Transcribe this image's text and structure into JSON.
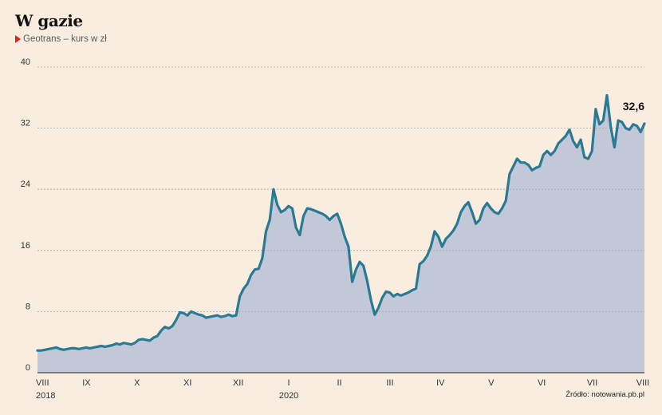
{
  "title": "W gazie",
  "legend_label": "Geotrans – kurs w zł",
  "source": "Źródło: notowania.pb.pl",
  "colors": {
    "background": "#f9ede0",
    "line": "#2a7a94",
    "area": "#c3c8d9",
    "marker": "#e2231a",
    "grid": "#a9a9a9"
  },
  "chart_data": {
    "type": "area",
    "series": [
      {
        "values": [
          2.9,
          2.9,
          3.0,
          3.1,
          3.2,
          3.3,
          3.1,
          3.0,
          3.1,
          3.2,
          3.2,
          3.1,
          3.2,
          3.3,
          3.2,
          3.3,
          3.4,
          3.5,
          3.4,
          3.5,
          3.6,
          3.8,
          3.7,
          3.9,
          3.8,
          3.7,
          3.9,
          4.3,
          4.4,
          4.3,
          4.2,
          4.6,
          4.8,
          5.5,
          6.0,
          5.8,
          6.1,
          6.9,
          7.9,
          7.8,
          7.5,
          8.0,
          7.8,
          7.6,
          7.5,
          7.2,
          7.3,
          7.4,
          7.5,
          7.3,
          7.4,
          7.6,
          7.4,
          7.5,
          10.0,
          11.0,
          11.6,
          12.8,
          13.5,
          13.6,
          15.0,
          18.5,
          20.0,
          24.0,
          22.0,
          21.0,
          21.3,
          21.8,
          21.5,
          19.0,
          18.0,
          20.5,
          21.5,
          21.4,
          21.2,
          21.0,
          20.8,
          20.5,
          20.0,
          20.5,
          20.8,
          19.5,
          17.8,
          16.5,
          11.9,
          13.5,
          14.5,
          14.0,
          12.0,
          9.5,
          7.6,
          8.5,
          9.8,
          10.6,
          10.5,
          10.0,
          10.3,
          10.1,
          10.3,
          10.5,
          10.8,
          11.0,
          14.2,
          14.6,
          15.3,
          16.5,
          18.5,
          17.8,
          16.5,
          17.5,
          18.0,
          18.6,
          19.5,
          21.0,
          21.8,
          22.3,
          21.0,
          19.5,
          20.0,
          21.5,
          22.2,
          21.5,
          21.0,
          20.8,
          21.5,
          22.5,
          26.0,
          27.0,
          28.0,
          27.5,
          27.5,
          27.2,
          26.5,
          26.8,
          27.0,
          28.5,
          29.0,
          28.5,
          29.0,
          30.0,
          30.5,
          31.0,
          31.8,
          30.3,
          29.5,
          30.5,
          28.2,
          28.0,
          29.0,
          34.5,
          32.5,
          33.0,
          36.3,
          32.2,
          29.5,
          33.0,
          32.8,
          32.0,
          31.8,
          32.5,
          32.3,
          31.5,
          32.6
        ]
      }
    ],
    "x_labels": [
      "VIII",
      "IX",
      "X",
      "XI",
      "XII",
      "I",
      "II",
      "III",
      "IV",
      "V",
      "VI",
      "VII",
      "VIII"
    ],
    "year_labels": [
      "2018",
      "2020"
    ],
    "y_ticks": [
      "0",
      "8",
      "16",
      "24",
      "32",
      "40"
    ],
    "ylim": [
      0,
      40
    ],
    "last_value_label": "32,6",
    "grid": true
  }
}
